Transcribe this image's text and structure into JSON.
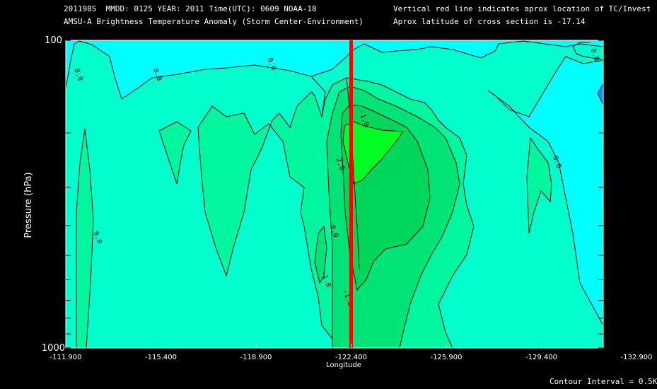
{
  "header": {
    "line1_left": "201198S  MMDD: 0125 YEAR: 2011 Time(UTC): 0609 NOAA-18",
    "line2_left": "AMSU-A Brightness Temperature Anomaly (Storm Center-Environment)",
    "line1_right": "Vertical red line indicates aprox location of TC/Invest",
    "line2_right": "Aprox latitude of cross section is -17.14"
  },
  "footer": {
    "contour_interval": "Contour Interval = 0.5K"
  },
  "chart_data": {
    "type": "contour",
    "ylabel": "Pressure (hPa)",
    "xlabel": "Longitude",
    "ylim": [
      1000,
      100
    ],
    "y_scale": "log",
    "y_tick_labels": [
      "100",
      "1000"
    ],
    "xlim": [
      -111.9,
      -132.9
    ],
    "x_tick_labels": [
      "-111.900",
      "-115.400",
      "-118.900",
      "-122.400",
      "-125.900",
      "-129.400",
      "-132.900"
    ],
    "x_ticks": [
      -111.9,
      -115.4,
      -118.9,
      -122.4,
      -125.9,
      -129.4,
      -132.9
    ],
    "storm_longitude": -122.4,
    "contour_labels": [
      {
        "text": "0.0",
        "lon": -112.3,
        "p": 130
      },
      {
        "text": "0.0",
        "lon": -115.2,
        "p": 130
      },
      {
        "text": "0.0",
        "lon": -119.4,
        "p": 120
      },
      {
        "text": "0.0",
        "lon": -131.3,
        "p": 112
      },
      {
        "text": "0.0",
        "lon": -129.9,
        "p": 250
      },
      {
        "text": "0.0",
        "lon": -113.0,
        "p": 440
      },
      {
        "text": "0.0",
        "lon": -121.7,
        "p": 420
      },
      {
        "text": "-1.0",
        "lon": -122.8,
        "p": 180
      },
      {
        "text": "-2.0",
        "lon": -121.9,
        "p": 250
      },
      {
        "text": "-1.0",
        "lon": -121.4,
        "p": 600
      },
      {
        "text": "-1.0",
        "lon": -122.2,
        "p": 690
      }
    ],
    "colors": {
      "background": "#000000",
      "band_positive": "#00ffff",
      "band_0": "#00ffcc",
      "band_m05": "#00f7a0",
      "band_m1": "#00e477",
      "band_m15": "#00d65a",
      "band_m2": "#00ff22",
      "band_pos_deep": "#0099ff",
      "storm_line": "#ff0000",
      "contour_line": "#000000"
    }
  }
}
